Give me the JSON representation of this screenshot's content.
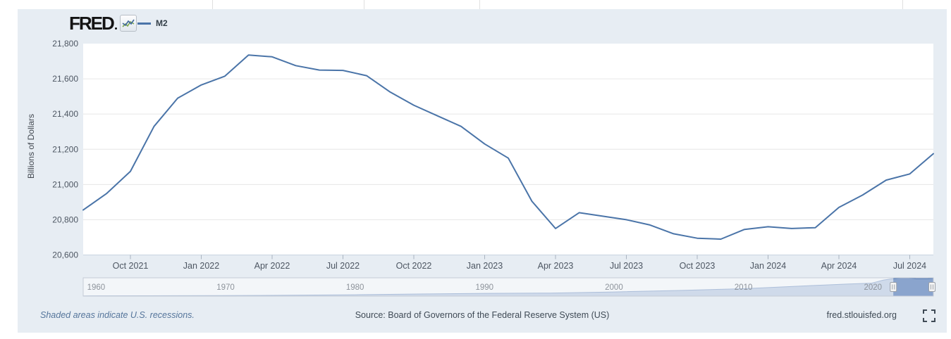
{
  "colors": {
    "card_background": "#e7edf3",
    "plot_background": "#ffffff",
    "series_line": "#4a74a8",
    "gridline": "#e6e6e6",
    "axis_line": "#c9d4e0",
    "tick_mark": "#aab4c0",
    "navigator_area_fill": "#9fb4d4",
    "navigator_selected_fill": "#8aa4cd",
    "navigator_outline": "#5b7fb5",
    "navigator_border": "#c5ccd6",
    "recession_note_text": "#55759b",
    "footer_text": "#3f4a55"
  },
  "header": {
    "logo_text": "FRED",
    "logo_icon": "line-chart-icon",
    "legend": {
      "label": "M2",
      "line_color": "#4a74a8"
    }
  },
  "chart_data": {
    "type": "line",
    "title": "M2",
    "ylabel": "Billions of Dollars",
    "ylim": [
      20600,
      21800
    ],
    "grid": true,
    "legend_position": "top-left",
    "y_ticks": [
      {
        "value": 21800,
        "label": "21,800"
      },
      {
        "value": 21600,
        "label": "21,600"
      },
      {
        "value": 21400,
        "label": "21,400"
      },
      {
        "value": 21200,
        "label": "21,200"
      },
      {
        "value": 21000,
        "label": "21,000"
      },
      {
        "value": 20800,
        "label": "20,800"
      },
      {
        "value": 20600,
        "label": "20,600"
      }
    ],
    "x_tick_labels": [
      "Oct 2021",
      "Jan 2022",
      "Apr 2022",
      "Jul 2022",
      "Oct 2022",
      "Jan 2023",
      "Apr 2023",
      "Jul 2023",
      "Oct 2023",
      "Jan 2024",
      "Apr 2024",
      "Jul 2024"
    ],
    "months": [
      "Aug 2021",
      "Sep 2021",
      "Oct 2021",
      "Nov 2021",
      "Dec 2021",
      "Jan 2022",
      "Feb 2022",
      "Mar 2022",
      "Apr 2022",
      "May 2022",
      "Jun 2022",
      "Jul 2022",
      "Aug 2022",
      "Sep 2022",
      "Oct 2022",
      "Nov 2022",
      "Dec 2022",
      "Jan 2023",
      "Feb 2023",
      "Mar 2023",
      "Apr 2023",
      "May 2023",
      "Jun 2023",
      "Jul 2023",
      "Aug 2023",
      "Sep 2023",
      "Oct 2023",
      "Nov 2023",
      "Dec 2023",
      "Jan 2024",
      "Feb 2024",
      "Mar 2024",
      "Apr 2024",
      "May 2024",
      "Jun 2024",
      "Jul 2024",
      "Aug 2024"
    ],
    "series": [
      {
        "name": "M2",
        "color": "#4a74a8",
        "values": [
          20855,
          20950,
          21075,
          21330,
          21490,
          21565,
          21615,
          21735,
          21725,
          21675,
          21650,
          21648,
          21618,
          21525,
          21450,
          21390,
          21330,
          21230,
          21150,
          20905,
          20750,
          20840,
          20820,
          20800,
          20770,
          20720,
          20695,
          20690,
          20745,
          20760,
          20750,
          20755,
          20870,
          20940,
          21025,
          21060,
          21175
        ]
      }
    ],
    "navigator": {
      "year_span": [
        1959,
        2024.67
      ],
      "ylim": [
        0,
        21800
      ],
      "year_labels": [
        "1960",
        "1970",
        "1980",
        "1990",
        "2000",
        "2010",
        "2020"
      ],
      "selected_range_years": [
        2021.58,
        2024.67
      ],
      "history_points": [
        [
          1959,
          290
        ],
        [
          1964,
          425
        ],
        [
          1970,
          600
        ],
        [
          1975,
          1020
        ],
        [
          1980,
          1600
        ],
        [
          1985,
          2500
        ],
        [
          1990,
          3280
        ],
        [
          1995,
          3630
        ],
        [
          2000,
          4920
        ],
        [
          2005,
          6680
        ],
        [
          2010,
          8800
        ],
        [
          2015,
          12330
        ],
        [
          2018,
          14360
        ],
        [
          2019.9,
          15400
        ],
        [
          2020.3,
          17000
        ],
        [
          2020.8,
          19000
        ],
        [
          2021.3,
          20200
        ],
        [
          2021.9,
          21300
        ],
        [
          2022.25,
          21740
        ],
        [
          2022.75,
          21580
        ],
        [
          2023.1,
          21200
        ],
        [
          2023.35,
          20750
        ],
        [
          2023.9,
          20690
        ],
        [
          2024.2,
          20770
        ],
        [
          2024.67,
          21175
        ]
      ]
    }
  },
  "footer": {
    "recession_note": "Shaded areas indicate U.S. recessions.",
    "source": "Source: Board of Governors of the Federal Reserve System (US)",
    "site": "fred.stlouisfed.org",
    "fullscreen_icon": "fullscreen-expand-icon"
  }
}
